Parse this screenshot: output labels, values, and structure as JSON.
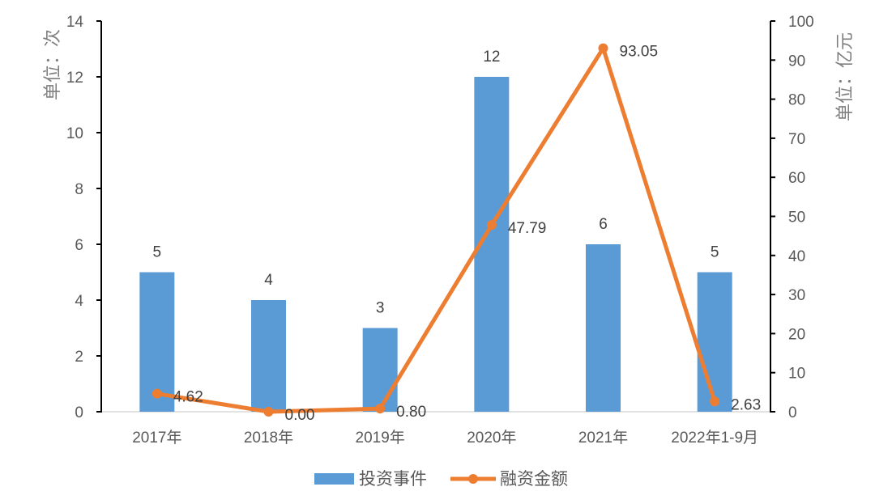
{
  "chart_data": {
    "type": "bar+line",
    "title": "",
    "categories": [
      "2017年",
      "2018年",
      "2019年",
      "2020年",
      "2021年",
      "2022年1-9月"
    ],
    "series": [
      {
        "name": "投资事件",
        "type": "bar",
        "axis": "left",
        "color": "#5b9bd5",
        "values": [
          5,
          4,
          3,
          12,
          6,
          5
        ],
        "labels": [
          "5",
          "4",
          "3",
          "12",
          "6",
          "5"
        ]
      },
      {
        "name": "融资金额",
        "type": "line",
        "axis": "right",
        "color": "#ed7d31",
        "values": [
          4.62,
          0.0,
          0.8,
          47.79,
          93.05,
          2.63
        ],
        "labels": [
          "4.62",
          "0.00",
          "0.80",
          "47.79",
          "93.05",
          "2.63"
        ]
      }
    ],
    "left_axis": {
      "title": "单位：次",
      "min": 0,
      "max": 14,
      "step": 2,
      "ticks": [
        "0",
        "2",
        "4",
        "6",
        "8",
        "10",
        "12",
        "14"
      ]
    },
    "right_axis": {
      "title": "单位：亿元",
      "min": 0,
      "max": 100,
      "step": 10,
      "ticks": [
        "0",
        "10",
        "20",
        "30",
        "40",
        "50",
        "60",
        "70",
        "80",
        "90",
        "100"
      ]
    },
    "xlabel": "",
    "grid": false,
    "legend_position": "bottom"
  },
  "legend": {
    "bar_label": "投资事件",
    "line_label": "融资金额"
  }
}
